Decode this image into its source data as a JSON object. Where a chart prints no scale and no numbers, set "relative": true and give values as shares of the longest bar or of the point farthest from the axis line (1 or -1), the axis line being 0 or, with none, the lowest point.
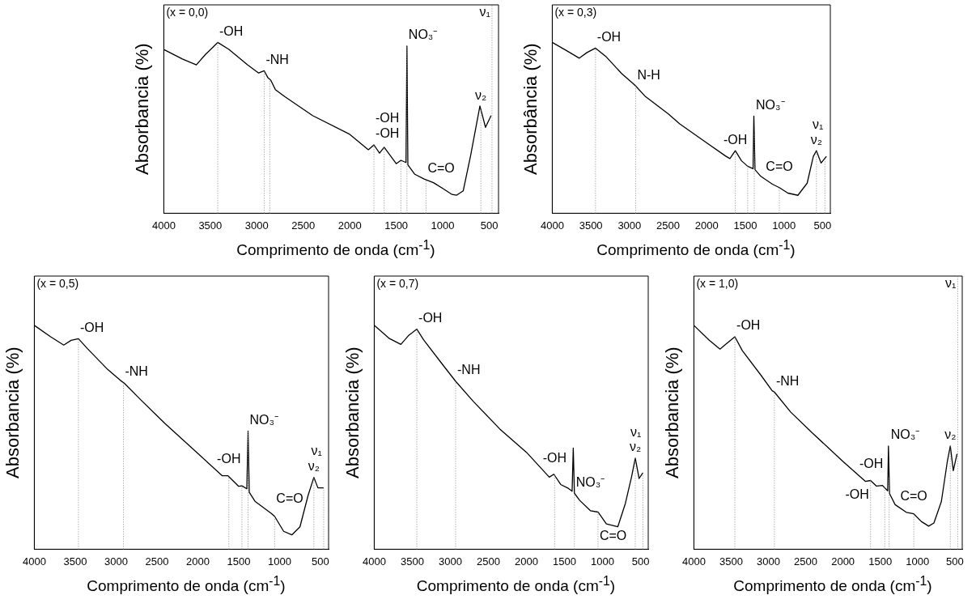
{
  "chart_data": [
    {
      "type": "line",
      "relative": true,
      "marker": "none",
      "color": "#000000",
      "xlabel": "Comprimento de onda (cm$^{-1}$)",
      "ylabel": "Absorbancia (%)",
      "xlim": [
        4000,
        400
      ],
      "xticks": [
        4000,
        3500,
        3000,
        2500,
        2000,
        1500,
        1000,
        500
      ],
      "x": [
        4000,
        3800,
        3650,
        3550,
        3420,
        3300,
        3100,
        2980,
        2920,
        2880,
        2850,
        2800,
        2700,
        2400,
        2000,
        1800,
        1740,
        1680,
        1630,
        1500,
        1450,
        1395,
        1385,
        1375,
        1300,
        1200,
        1100,
        1000,
        900,
        850,
        780,
        700,
        600,
        540,
        480
      ],
      "values": [
        0.959,
        0.903,
        0.869,
        0.931,
        1.0,
        0.959,
        0.869,
        0.821,
        0.834,
        0.793,
        0.779,
        0.724,
        0.683,
        0.572,
        0.462,
        0.372,
        0.4,
        0.352,
        0.386,
        0.29,
        0.31,
        0.297,
        0.979,
        0.283,
        0.228,
        0.2,
        0.179,
        0.145,
        0.11,
        0.106,
        0.131,
        0.338,
        0.628,
        0.503,
        0.572
      ],
      "ref_lines": [
        {
          "axis": "x",
          "value": 3420,
          "label": "-OH",
          "line_style": "dotted",
          "color": "#888888"
        },
        {
          "axis": "x",
          "value": 2920,
          "label": "-NH",
          "line_style": "dotted",
          "color": "#888888"
        },
        {
          "axis": "x",
          "value": 2860,
          "line_style": "dotted",
          "color": "#888888"
        },
        {
          "axis": "x",
          "value": 1740,
          "label": "-OH",
          "line_style": "dotted",
          "color": "#888888"
        },
        {
          "axis": "x",
          "value": 1630,
          "line_style": "dotted",
          "color": "#888888"
        },
        {
          "axis": "x",
          "value": 1450,
          "label": "-OH",
          "line_style": "dotted",
          "color": "#888888"
        },
        {
          "axis": "x",
          "value": 1385,
          "label": "NO₃⁻",
          "line_style": "dotted",
          "color": "#888888"
        },
        {
          "axis": "x",
          "value": 1180,
          "label": "C=O",
          "line_style": "dotted",
          "color": "#888888"
        },
        {
          "axis": "x",
          "value": 590,
          "label": "ν₂",
          "line_style": "dotted",
          "color": "#888888"
        },
        {
          "axis": "x",
          "value": 470,
          "label": "ν₁",
          "line_style": "dotted",
          "color": "#888888"
        }
      ],
      "annotations": [
        "(x = 0,0)"
      ]
    },
    {
      "type": "line",
      "relative": true,
      "marker": "none",
      "color": "#000000",
      "xlabel": "Comprimento de onda (cm$^{-1}$)",
      "ylabel": "Absorbância (%)",
      "xlim": [
        4000,
        400
      ],
      "xticks": [
        4000,
        3500,
        3000,
        2500,
        2000,
        1500,
        1000,
        500
      ],
      "x": [
        4000,
        3800,
        3650,
        3550,
        3440,
        3300,
        3100,
        2950,
        2920,
        2800,
        2500,
        2350,
        2000,
        1750,
        1700,
        1630,
        1550,
        1470,
        1400,
        1390,
        1375,
        1300,
        1150,
        1060,
        950,
        820,
        700,
        620,
        580,
        520,
        450
      ],
      "values": [
        1.0,
        0.948,
        0.908,
        0.941,
        0.967,
        0.915,
        0.817,
        0.758,
        0.745,
        0.686,
        0.582,
        0.523,
        0.412,
        0.333,
        0.32,
        0.366,
        0.307,
        0.275,
        0.261,
        0.569,
        0.255,
        0.216,
        0.17,
        0.15,
        0.118,
        0.105,
        0.176,
        0.333,
        0.366,
        0.294,
        0.333
      ],
      "ref_lines": [
        {
          "axis": "x",
          "value": 3440,
          "label": "-OH",
          "line_style": "dotted",
          "color": "#888888"
        },
        {
          "axis": "x",
          "value": 2920,
          "label": "N-H",
          "line_style": "dotted",
          "color": "#888888"
        },
        {
          "axis": "x",
          "value": 1630,
          "label": "-OH",
          "line_style": "dotted",
          "color": "#888888"
        },
        {
          "axis": "x",
          "value": 1470,
          "line_style": "dotted",
          "color": "#888888"
        },
        {
          "axis": "x",
          "value": 1385,
          "label": "NO₃⁻",
          "line_style": "dotted",
          "color": "#888888"
        },
        {
          "axis": "x",
          "value": 1060,
          "label": "C=O",
          "line_style": "dotted",
          "color": "#888888"
        },
        {
          "axis": "x",
          "value": 580,
          "label": "ν₂",
          "line_style": "dotted",
          "color": "#888888"
        },
        {
          "axis": "x",
          "value": 470,
          "label": "ν₁",
          "line_style": "dotted",
          "color": "#888888"
        }
      ],
      "annotations": [
        "(x = 0,3)"
      ]
    },
    {
      "type": "line",
      "relative": true,
      "marker": "none",
      "color": "#000000",
      "xlabel": "Comprimento de onda (cm$^{-1}$)",
      "ylabel": "Absorbancia (%)",
      "xlim": [
        4000,
        400
      ],
      "xticks": [
        4000,
        3500,
        3000,
        2500,
        2000,
        1500,
        1000,
        500
      ],
      "x": [
        4000,
        3800,
        3640,
        3550,
        3460,
        3350,
        3100,
        2950,
        2900,
        2700,
        2400,
        2000,
        1700,
        1630,
        1500,
        1460,
        1400,
        1385,
        1370,
        1300,
        1100,
        1060,
        950,
        850,
        750,
        650,
        580,
        530,
        460
      ],
      "values": [
        1.0,
        0.949,
        0.912,
        0.933,
        0.94,
        0.896,
        0.802,
        0.755,
        0.742,
        0.668,
        0.561,
        0.428,
        0.328,
        0.328,
        0.281,
        0.283,
        0.27,
        0.528,
        0.254,
        0.214,
        0.16,
        0.147,
        0.08,
        0.064,
        0.1,
        0.241,
        0.321,
        0.274,
        0.274
      ],
      "ref_lines": [
        {
          "axis": "x",
          "value": 3460,
          "label": "-OH",
          "line_style": "dotted",
          "color": "#888888"
        },
        {
          "axis": "x",
          "value": 2910,
          "label": "-NH",
          "line_style": "dotted",
          "color": "#888888"
        },
        {
          "axis": "x",
          "value": 1620,
          "label": "-OH",
          "line_style": "dotted",
          "color": "#888888"
        },
        {
          "axis": "x",
          "value": 1460,
          "line_style": "dotted",
          "color": "#888888"
        },
        {
          "axis": "x",
          "value": 1385,
          "label": "NO₃⁻",
          "line_style": "dotted",
          "color": "#888888"
        },
        {
          "axis": "x",
          "value": 1060,
          "label": "C=O",
          "line_style": "dotted",
          "color": "#888888"
        },
        {
          "axis": "x",
          "value": 580,
          "label": "ν₂",
          "line_style": "dotted",
          "color": "#888888"
        },
        {
          "axis": "x",
          "value": 460,
          "label": "ν₁",
          "line_style": "dotted",
          "color": "#888888"
        }
      ],
      "annotations": [
        "(x = 0,5)"
      ]
    },
    {
      "type": "line",
      "relative": true,
      "marker": "none",
      "color": "#000000",
      "xlabel": "Comprimento de onda (cm$^{-1}$)",
      "ylabel": "Absorbancia (%)",
      "xlim": [
        4000,
        400
      ],
      "xticks": [
        4000,
        3500,
        3000,
        2500,
        2000,
        1500,
        1000,
        500
      ],
      "x": [
        4000,
        3800,
        3650,
        3550,
        3440,
        3350,
        3100,
        2930,
        2700,
        2350,
        2000,
        1700,
        1640,
        1550,
        1450,
        1400,
        1385,
        1370,
        1300,
        1160,
        1060,
        950,
        800,
        700,
        620,
        570,
        520,
        470
      ],
      "values": [
        1.0,
        0.941,
        0.915,
        0.954,
        0.983,
        0.935,
        0.824,
        0.75,
        0.661,
        0.537,
        0.433,
        0.322,
        0.335,
        0.289,
        0.272,
        0.259,
        0.452,
        0.25,
        0.218,
        0.172,
        0.166,
        0.113,
        0.1,
        0.205,
        0.322,
        0.407,
        0.316,
        0.342
      ],
      "ref_lines": [
        {
          "axis": "x",
          "value": 3440,
          "label": "-OH",
          "line_style": "dotted",
          "color": "#888888"
        },
        {
          "axis": "x",
          "value": 2930,
          "label": "-NH",
          "line_style": "dotted",
          "color": "#888888"
        },
        {
          "axis": "x",
          "value": 1630,
          "label": "-OH",
          "line_style": "dotted",
          "color": "#888888"
        },
        {
          "axis": "x",
          "value": 1370,
          "label": "NO₃⁻",
          "line_style": "dotted",
          "color": "#888888"
        },
        {
          "axis": "x",
          "value": 1060,
          "label": "C=O",
          "line_style": "dotted",
          "color": "#888888"
        },
        {
          "axis": "x",
          "value": 570,
          "label": "ν₂",
          "line_style": "dotted",
          "color": "#888888"
        },
        {
          "axis": "x",
          "value": 470,
          "label": "ν₁",
          "line_style": "dotted",
          "color": "#888888"
        }
      ],
      "annotations": [
        "(x = 0,7)"
      ]
    },
    {
      "type": "line",
      "relative": true,
      "marker": "none",
      "color": "#000000",
      "xlabel": "Comprimento de onda (cm$^{-1}$)",
      "ylabel": "Absorbancia (%)",
      "xlim": [
        4000,
        400
      ],
      "xticks": [
        4000,
        3500,
        3000,
        2500,
        2000,
        1500,
        1000,
        500
      ],
      "x": [
        4000,
        3800,
        3650,
        3550,
        3450,
        3350,
        3100,
        2950,
        2920,
        2700,
        2400,
        2000,
        1700,
        1630,
        1550,
        1470,
        1400,
        1390,
        1375,
        1300,
        1150,
        1050,
        950,
        850,
        780,
        680,
        600,
        560,
        520,
        470
      ],
      "values": [
        1.0,
        0.935,
        0.894,
        0.922,
        0.949,
        0.887,
        0.777,
        0.708,
        0.702,
        0.612,
        0.516,
        0.392,
        0.303,
        0.307,
        0.282,
        0.285,
        0.261,
        0.461,
        0.248,
        0.199,
        0.165,
        0.158,
        0.124,
        0.103,
        0.117,
        0.213,
        0.392,
        0.461,
        0.351,
        0.426
      ],
      "ref_lines": [
        {
          "axis": "x",
          "value": 3450,
          "label": "-OH",
          "line_style": "dotted",
          "color": "#888888"
        },
        {
          "axis": "x",
          "value": 2920,
          "label": "-NH",
          "line_style": "dotted",
          "color": "#888888"
        },
        {
          "axis": "x",
          "value": 1630,
          "label": "-OH",
          "line_style": "dotted",
          "color": "#888888"
        },
        {
          "axis": "x",
          "value": 1440,
          "label": "-OH",
          "line_style": "dotted",
          "color": "#888888"
        },
        {
          "axis": "x",
          "value": 1380,
          "label": "NO₃⁻",
          "line_style": "dotted",
          "color": "#888888"
        },
        {
          "axis": "x",
          "value": 1050,
          "label": "C=O",
          "line_style": "dotted",
          "color": "#888888"
        },
        {
          "axis": "x",
          "value": 560,
          "label": "ν₂",
          "line_style": "dotted",
          "color": "#888888"
        },
        {
          "axis": "x",
          "value": 460,
          "label": "ν₁",
          "line_style": "dotted",
          "color": "#888888"
        }
      ],
      "annotations": [
        "(x = 1,0)"
      ]
    }
  ]
}
